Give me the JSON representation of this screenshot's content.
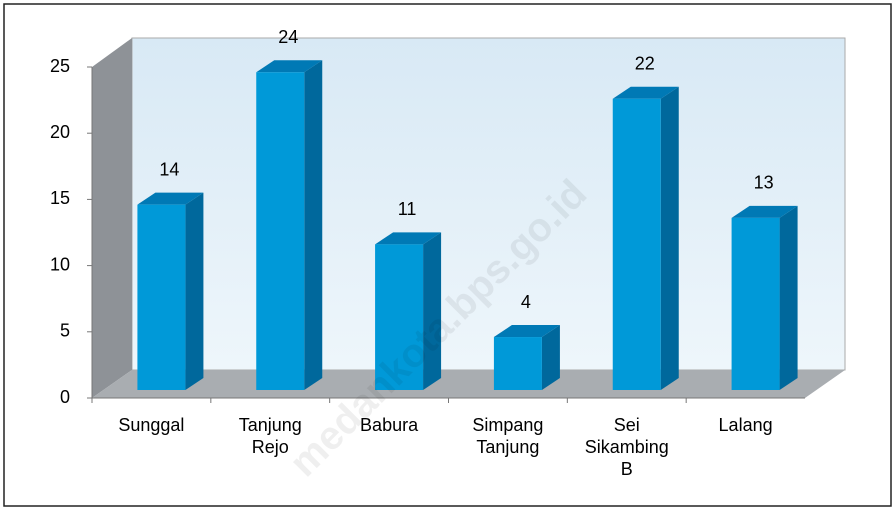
{
  "chart_data": {
    "type": "bar3d",
    "categories": [
      "Sunggal",
      "Tanjung Rejo",
      "Babura",
      "Simpang Tanjung",
      "Sei Sikambing B",
      "Lalang"
    ],
    "values": [
      14,
      24,
      11,
      4,
      22,
      13
    ],
    "color": "#0099d8",
    "ylim": [
      0,
      25
    ],
    "yticks": [
      0,
      5,
      10,
      15,
      20,
      25
    ],
    "watermark": "medankota.bps.go.id"
  }
}
